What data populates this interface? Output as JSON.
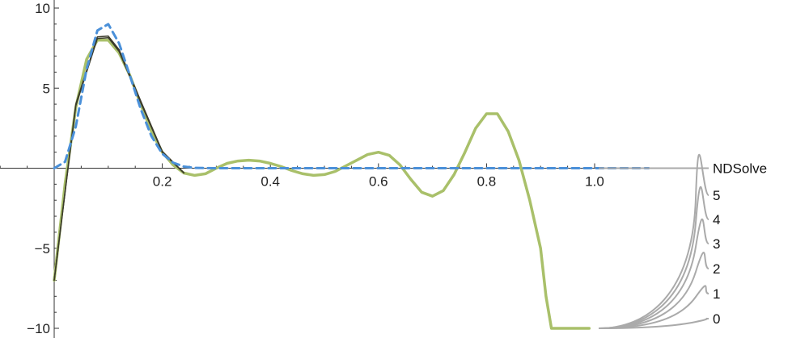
{
  "chart_data": {
    "type": "line",
    "title": "",
    "xlabel": "",
    "ylabel": "",
    "xlim": [
      -0.1,
      1.22
    ],
    "ylim": [
      -10,
      10
    ],
    "x_ticks": [
      {
        "value": 0.2,
        "label": "0.2"
      },
      {
        "value": 0.4,
        "label": "0.4"
      },
      {
        "value": 0.6,
        "label": "0.6"
      },
      {
        "value": 0.8,
        "label": "0.8"
      },
      {
        "value": 1.0,
        "label": "1.0"
      }
    ],
    "y_ticks": [
      {
        "value": 10,
        "label": "10"
      },
      {
        "value": 5,
        "label": "5"
      },
      {
        "value": -5,
        "label": "−5"
      },
      {
        "value": -10,
        "label": "−10"
      }
    ],
    "legend": {
      "placement": "right",
      "entries": [
        "NDSolve",
        "5",
        "4",
        "3",
        "2",
        "1",
        "0"
      ]
    },
    "colors": {
      "ndsolve": "#4a90d9",
      "approx_light": "#a9c06a",
      "approx_dark": "#3a3a2a",
      "legend_gray": "#aaaaaa",
      "axis": "#333333"
    },
    "series": [
      {
        "name": "NDSolve",
        "style": "dashed",
        "x": [
          0,
          0.02,
          0.04,
          0.06,
          0.08,
          0.1,
          0.12,
          0.14,
          0.16,
          0.18,
          0.2,
          0.22,
          0.24,
          0.26,
          0.3,
          0.4,
          0.5,
          0.6,
          0.7,
          0.8,
          0.9,
          1.0,
          1.1
        ],
        "y": [
          0,
          0.4,
          2.6,
          6.2,
          8.6,
          9.0,
          7.8,
          5.8,
          3.7,
          2.0,
          0.9,
          0.35,
          0.1,
          0.02,
          0,
          0,
          0,
          0,
          0,
          0,
          0,
          0,
          0
        ]
      },
      {
        "name": "5",
        "style": "solid",
        "x": [
          0,
          0.02,
          0.04,
          0.06,
          0.08,
          0.1,
          0.12,
          0.14,
          0.16,
          0.18,
          0.2,
          0.22,
          0.24,
          0.26,
          0.28,
          0.3,
          0.32,
          0.34,
          0.36,
          0.38,
          0.4,
          0.42,
          0.44,
          0.46,
          0.48,
          0.5,
          0.52,
          0.54,
          0.56,
          0.58,
          0.6,
          0.62,
          0.64,
          0.66,
          0.68,
          0.7,
          0.72,
          0.74,
          0.76,
          0.78,
          0.8,
          0.82,
          0.84,
          0.86,
          0.88,
          0.9,
          0.91,
          0.92,
          0.93,
          0.94,
          0.95,
          0.96,
          0.97,
          0.98,
          0.99
        ],
        "y": [
          -7.0,
          -1.0,
          3.8,
          6.8,
          8.0,
          8.0,
          7.2,
          5.8,
          4.0,
          2.3,
          1.0,
          0.2,
          -0.3,
          -0.45,
          -0.35,
          0.0,
          0.3,
          0.45,
          0.5,
          0.45,
          0.3,
          0.1,
          -0.15,
          -0.35,
          -0.45,
          -0.4,
          -0.2,
          0.15,
          0.5,
          0.85,
          1.0,
          0.8,
          0.2,
          -0.7,
          -1.5,
          -1.75,
          -1.4,
          -0.4,
          1.0,
          2.5,
          3.4,
          3.4,
          2.3,
          0.5,
          -2.0,
          -5.0,
          -8.0,
          -10.0,
          -10.0,
          -10.0,
          -10.0,
          -10.0,
          -10.0,
          -10.0,
          -10.0
        ]
      },
      {
        "name": "4",
        "style": "solid",
        "x": [
          0,
          0.04,
          0.08,
          0.1,
          0.12,
          0.16,
          0.2,
          0.24
        ],
        "y": [
          -7.0,
          3.9,
          8.1,
          8.15,
          7.3,
          4.1,
          1.0,
          -0.3
        ]
      },
      {
        "name": "3",
        "style": "solid",
        "x": [
          0,
          0.04,
          0.08,
          0.1,
          0.12,
          0.16,
          0.2,
          0.24
        ],
        "y": [
          -7.0,
          4.0,
          8.2,
          8.25,
          7.4,
          4.2,
          1.05,
          -0.28
        ]
      }
    ]
  }
}
